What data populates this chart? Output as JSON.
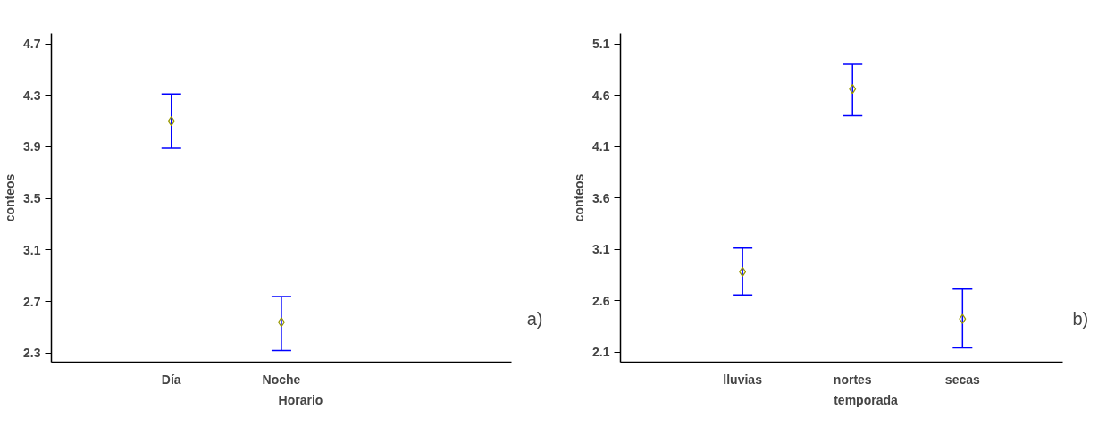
{
  "chart_data": [
    {
      "type": "scatter",
      "xlabel": "Horario",
      "ylabel": "conteos",
      "categories": [
        "Día",
        "Noche"
      ],
      "ylim": [
        2.23,
        4.78
      ],
      "yticks": [
        2.3,
        2.7,
        3.1,
        3.5,
        3.9,
        4.3,
        4.7
      ],
      "marker": "diamond",
      "grid": false,
      "annotations": [
        "a)"
      ],
      "series": [
        {
          "color": "#999900",
          "values": [
            4.1,
            2.54
          ],
          "errors": [
            [
              3.89,
              4.31
            ],
            [
              2.32,
              2.74
            ]
          ]
        }
      ]
    },
    {
      "type": "scatter",
      "xlabel": "temporada",
      "ylabel": "conteos",
      "categories": [
        "lluvias",
        "nortes",
        "secas"
      ],
      "ylim": [
        2.0,
        5.2
      ],
      "yticks": [
        2.1,
        2.6,
        3.1,
        3.6,
        4.1,
        4.6,
        5.1
      ],
      "marker": "diamond",
      "grid": false,
      "annotations": [
        "b)"
      ],
      "series": [
        {
          "color": "#999900",
          "values": [
            2.88,
            4.66,
            2.42
          ],
          "errors": [
            [
              2.655,
              3.11
            ],
            [
              4.4,
              4.9
            ],
            [
              2.14,
              2.71
            ]
          ]
        }
      ]
    }
  ]
}
